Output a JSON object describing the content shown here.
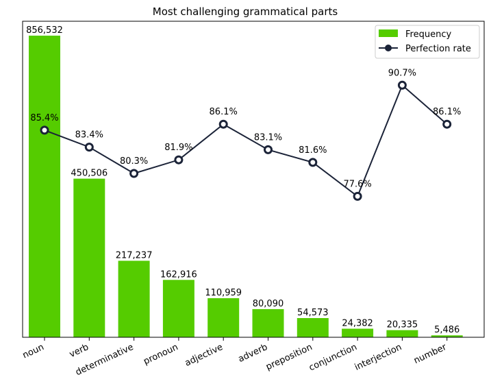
{
  "chart_data": {
    "type": "bar",
    "title": "Most challenging grammatical parts",
    "xlabel": "",
    "ylabel": "",
    "categories": [
      "noun",
      "verb",
      "determinative",
      "pronoun",
      "adjective",
      "adverb",
      "preposition",
      "conjunction",
      "interjection",
      "number"
    ],
    "series": [
      {
        "name": "Frequency",
        "type": "bar",
        "color": "#55cc00",
        "values": [
          856532,
          450506,
          217237,
          162916,
          110959,
          80090,
          54573,
          24382,
          20335,
          5486
        ],
        "labels": [
          "856,532",
          "450,506",
          "217,237",
          "162,916",
          "110,959",
          "80,090",
          "54,573",
          "24,382",
          "20,335",
          "5,486"
        ]
      },
      {
        "name": "Perfection rate",
        "type": "line",
        "color": "#1b2338",
        "values": [
          85.4,
          83.4,
          80.3,
          81.9,
          86.1,
          83.1,
          81.6,
          77.6,
          90.7,
          86.1
        ],
        "labels": [
          "85.4%",
          "83.4%",
          "80.3%",
          "81.9%",
          "86.1%",
          "83.1%",
          "81.6%",
          "77.6%",
          "90.7%",
          "86.1%"
        ]
      }
    ],
    "legend": {
      "placement": "top-right",
      "entries": [
        "Frequency",
        "Perfection rate"
      ]
    },
    "grid": false,
    "axes": {
      "y_visible": false,
      "bar_ylim": [
        0,
        856532
      ],
      "rate_ylim": [
        0,
        100
      ]
    }
  }
}
